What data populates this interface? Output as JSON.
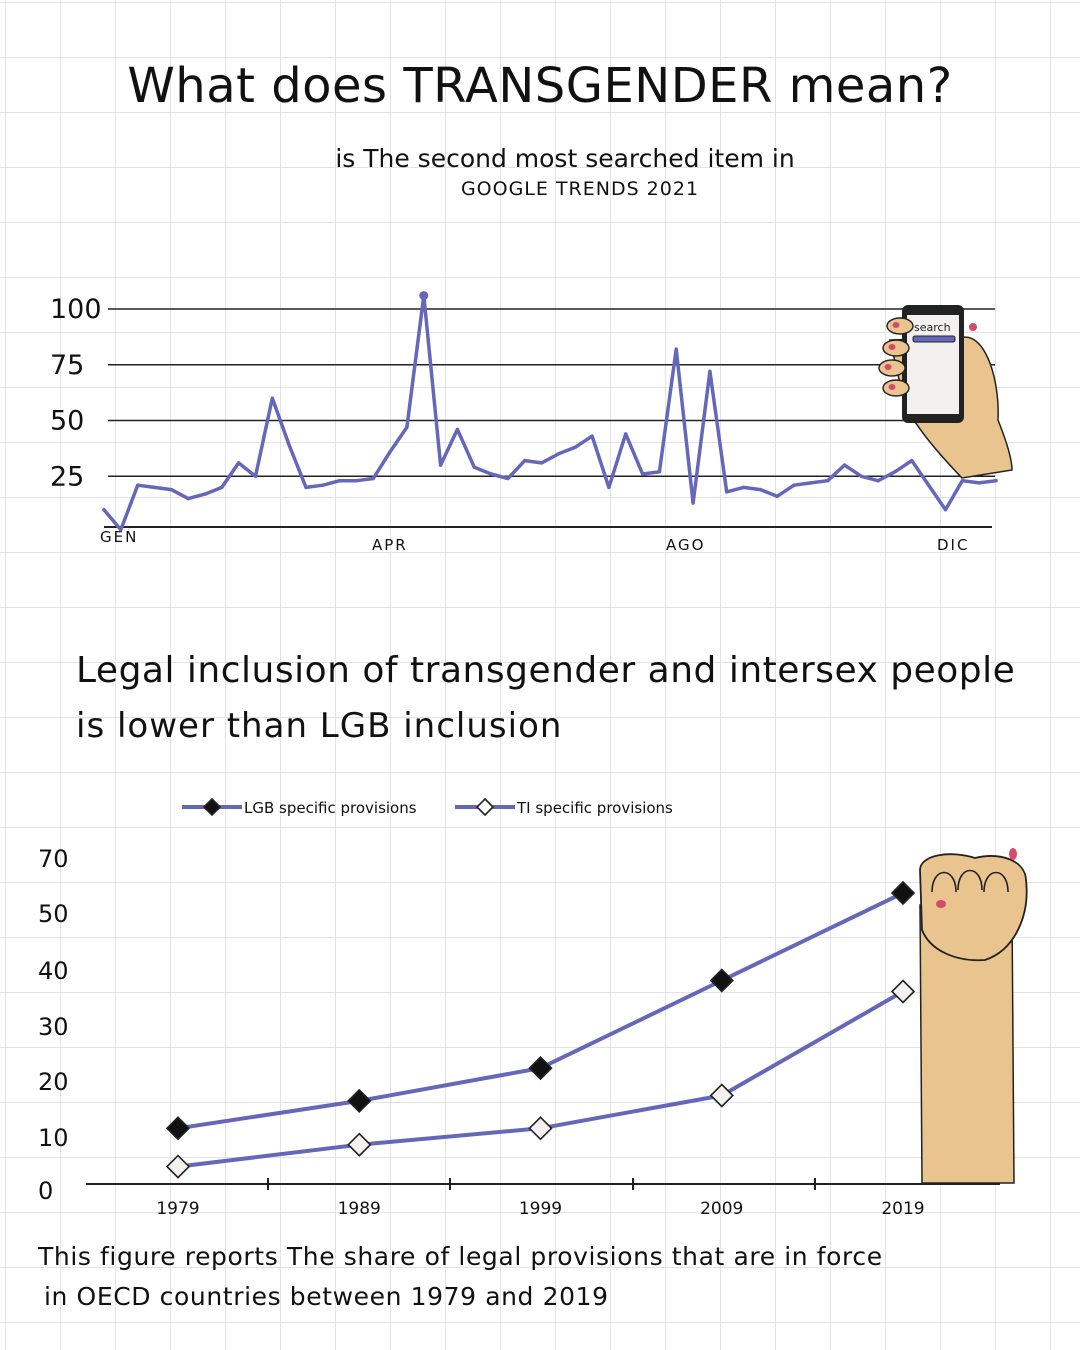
{
  "title": "What does TRANSGENDER mean?",
  "subtitle_line1": "is The second most searched item in",
  "subtitle_line2": "GOOGLE TRENDS 2021",
  "section2_title_line1": "Legal inclusion of transgender and intersex people",
  "section2_title_line2": "is lower than LGB inclusion",
  "caption_line1": "This figure reports The share of legal provisions that are in force",
  "caption_line2": "in OECD countries between 1979 and 2019",
  "phone_search_label": "search",
  "colors": {
    "line": "#6567b9",
    "grid": "#e3e3e3",
    "skin": "#e9c48f",
    "nail": "#d64b6a",
    "ink": "#111111"
  },
  "chart_data": [
    {
      "type": "line",
      "ylim": [
        0,
        100
      ],
      "yticks": [
        "100",
        "75",
        "50",
        "25"
      ],
      "xticks": [
        "GEN",
        "APR",
        "AGO",
        "DIC"
      ],
      "grid": "horizontal lines at y-ticks",
      "series": [
        {
          "values": [
            10,
            1,
            21,
            20,
            19,
            15,
            17,
            20,
            31,
            25,
            60,
            39,
            20,
            21,
            23,
            23,
            24,
            36,
            47,
            106,
            30,
            46,
            29,
            26,
            24,
            32,
            31,
            35,
            38,
            43,
            20,
            44,
            26,
            27,
            82,
            13,
            72,
            18,
            20,
            19,
            16,
            21,
            22,
            23,
            30,
            25,
            23,
            27,
            32,
            21,
            10,
            23,
            22,
            23
          ]
        }
      ]
    },
    {
      "type": "line",
      "ylim": [
        0,
        70
      ],
      "yticks": [
        "70",
        "50",
        "40",
        "30",
        "20",
        "10",
        "0"
      ],
      "categories": [
        "1979",
        "1989",
        "1999",
        "2009",
        "2019"
      ],
      "legend": "top",
      "series": [
        {
          "name": "LGB specific provisions",
          "marker": "filled-diamond",
          "values": [
            10,
            15,
            21,
            37,
            53
          ]
        },
        {
          "name": "TI specific provisions",
          "marker": "open-diamond",
          "values": [
            3,
            7,
            10,
            16,
            35
          ]
        }
      ]
    }
  ]
}
